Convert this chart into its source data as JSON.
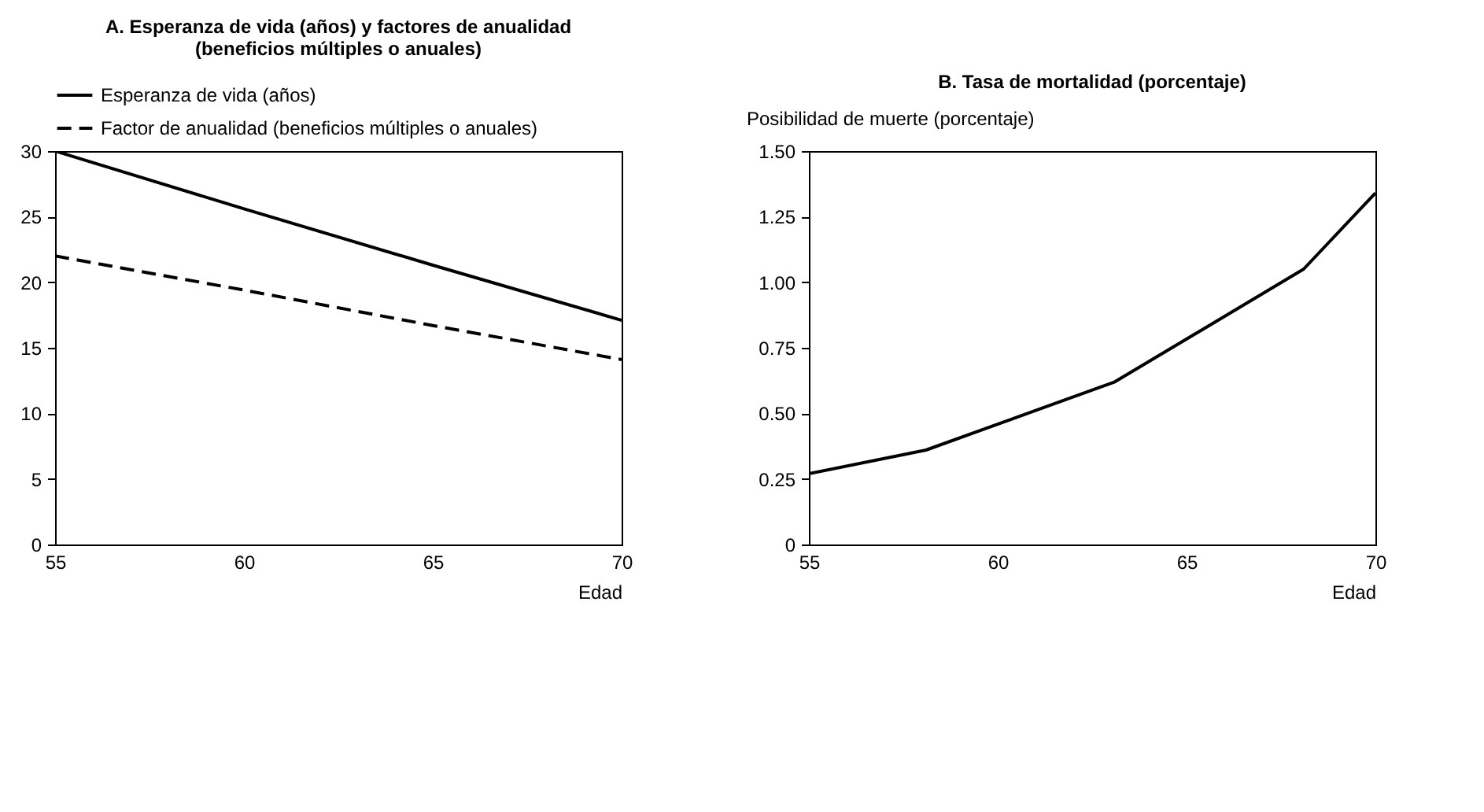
{
  "chart_data": [
    {
      "type": "line",
      "title": "A. Esperanza de vida (años) y factores de anualidad (beneficios múltiples o anuales)",
      "xlabel": "Edad",
      "x": [
        55,
        60,
        65,
        70
      ],
      "series": [
        {
          "name": "Esperanza de vida (años)",
          "color": "#000000",
          "line_style": "solid",
          "values": [
            30,
            25.6,
            21.3,
            17.1
          ]
        },
        {
          "name": "Factor de anualidad (beneficios múltiples o anuales)",
          "color": "#000000",
          "line_style": "dashed",
          "values": [
            22,
            19.4,
            16.7,
            14.1
          ]
        }
      ],
      "xlim": [
        55,
        70
      ],
      "xticks": [
        55,
        60,
        65,
        70
      ],
      "ylim": [
        0,
        30
      ],
      "yticks": [
        0,
        5,
        10,
        15,
        20,
        25,
        30
      ],
      "legend": "top"
    },
    {
      "type": "line",
      "title": "B. Tasa de mortalidad (porcentaje)",
      "ylabel": "Posibilidad de muerte (porcentaje)",
      "xlabel": "Edad",
      "series": [
        {
          "color": "#000000",
          "line_style": "solid",
          "x": [
            55,
            58.1,
            63.1,
            68.1,
            70
          ],
          "values": [
            0.27,
            0.36,
            0.62,
            1.05,
            1.34
          ]
        }
      ],
      "xlim": [
        55,
        70
      ],
      "xticks": [
        55,
        60,
        65,
        70
      ],
      "ylim": [
        0,
        1.5
      ],
      "yticks": [
        0,
        {
          "value": 0.25,
          "label": "0.25"
        },
        {
          "value": 0.5,
          "label": "0.50"
        },
        {
          "value": 0.75,
          "label": "0.75"
        },
        {
          "value": 1,
          "label": "1.00"
        },
        {
          "value": 1.25,
          "label": "1.25"
        },
        {
          "value": 1.5,
          "label": "1.50"
        }
      ]
    }
  ]
}
